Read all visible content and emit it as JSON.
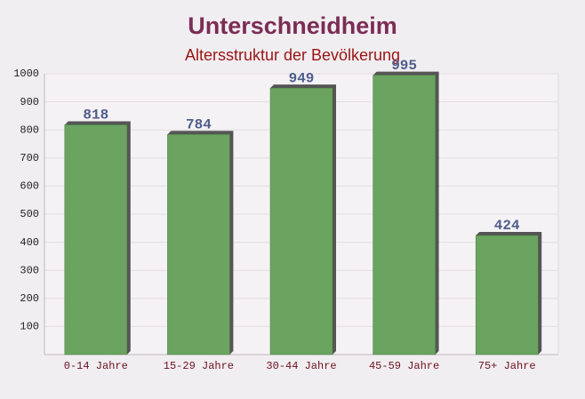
{
  "chart_data": {
    "type": "bar",
    "title": "Unterschneidheim",
    "subtitle": "Altersstruktur der Bevölkerung",
    "categories": [
      "0-14 Jahre",
      "15-29 Jahre",
      "30-44 Jahre",
      "45-59 Jahre",
      "75+ Jahre"
    ],
    "values": [
      818,
      784,
      949,
      995,
      424
    ],
    "color": "#6aa460",
    "ylim": [
      0,
      1000
    ],
    "yticks": [
      100,
      200,
      300,
      400,
      500,
      600,
      700,
      800,
      900,
      1000
    ],
    "grid": true
  }
}
